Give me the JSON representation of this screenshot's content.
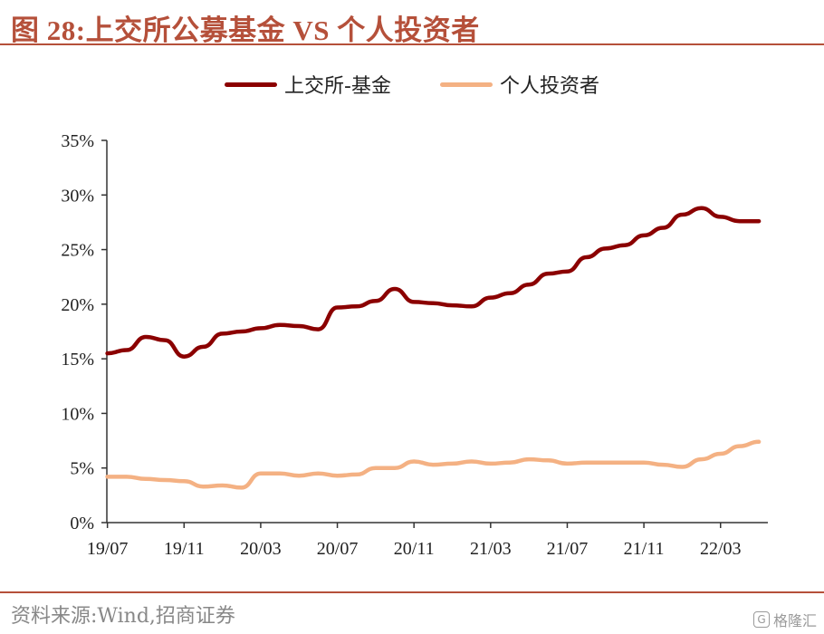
{
  "title": "图 28:上交所公募基金 VS 个人投资者",
  "source": "资料来源:Wind,招商证券",
  "watermark": {
    "text": "格隆汇",
    "icon": "logo-icon"
  },
  "colors": {
    "accent": "#B5503A",
    "fund": "#8B0000",
    "individual": "#F4B183"
  },
  "chart_data": {
    "type": "line",
    "title": "",
    "xlabel": "",
    "ylabel": "",
    "ylim": [
      0,
      35
    ],
    "y_ticks": [
      "0%",
      "5%",
      "10%",
      "15%",
      "20%",
      "25%",
      "30%",
      "35%"
    ],
    "x_ticks": [
      "19/07",
      "19/11",
      "20/03",
      "20/07",
      "20/11",
      "21/03",
      "21/07",
      "21/11",
      "22/03"
    ],
    "legend": "top",
    "x": [
      "19/07",
      "19/08",
      "19/09",
      "19/10",
      "19/11",
      "19/12",
      "20/01",
      "20/02",
      "20/03",
      "20/04",
      "20/05",
      "20/06",
      "20/07",
      "20/08",
      "20/09",
      "20/10",
      "20/11",
      "20/12",
      "21/01",
      "21/02",
      "21/03",
      "21/04",
      "21/05",
      "21/06",
      "21/07",
      "21/08",
      "21/09",
      "21/10",
      "21/11",
      "21/12",
      "22/01",
      "22/02",
      "22/03",
      "22/04",
      "22/05"
    ],
    "series": [
      {
        "name": "上交所-基金",
        "values": [
          15.5,
          15.8,
          17.0,
          16.7,
          15.2,
          16.1,
          17.3,
          17.5,
          17.8,
          18.1,
          18.0,
          17.7,
          19.7,
          19.8,
          20.3,
          21.4,
          20.2,
          20.1,
          19.9,
          19.8,
          20.6,
          21.0,
          21.8,
          22.8,
          23.0,
          24.3,
          25.1,
          25.4,
          26.3,
          27.0,
          28.2,
          28.8,
          28.0,
          27.6,
          27.6
        ]
      },
      {
        "name": "个人投资者",
        "values": [
          4.2,
          4.2,
          4.0,
          3.9,
          3.8,
          3.3,
          3.4,
          3.2,
          4.5,
          4.5,
          4.3,
          4.5,
          4.3,
          4.4,
          5.0,
          5.0,
          5.6,
          5.3,
          5.4,
          5.6,
          5.4,
          5.5,
          5.8,
          5.7,
          5.4,
          5.5,
          5.5,
          5.5,
          5.5,
          5.3,
          5.1,
          5.8,
          6.3,
          7.0,
          7.4
        ]
      }
    ]
  }
}
